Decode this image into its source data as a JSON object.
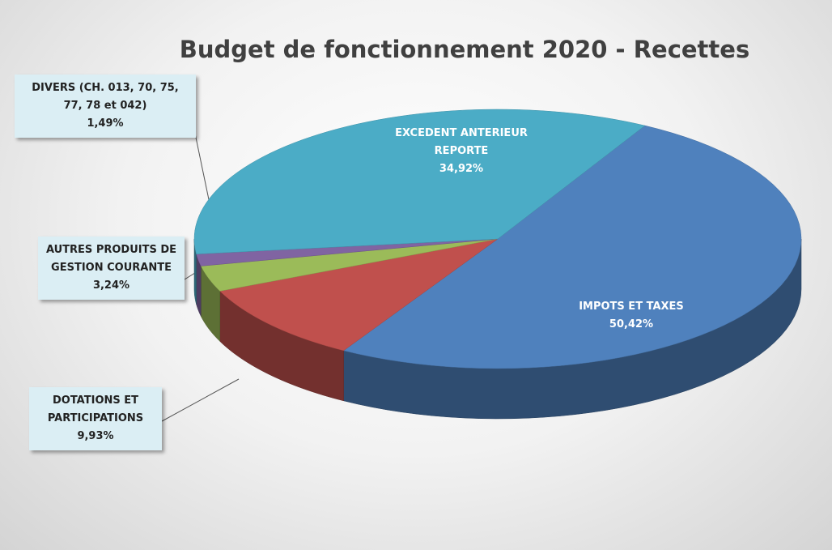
{
  "chart_data": {
    "type": "pie",
    "title": "Budget de fonctionnement 2020 - Recettes",
    "categories": [
      "IMPOTS ET TAXES",
      "DOTATIONS ET PARTICIPATIONS",
      "AUTRES PRODUITS DE GESTION COURANTE",
      "DIVERS (CH. 013, 70, 75, 77, 78 et 042)",
      "EXCEDENT ANTERIEUR REPORTE"
    ],
    "values": [
      50.42,
      9.93,
      3.24,
      1.49,
      34.92
    ],
    "value_labels": [
      "50,42%",
      "9,93%",
      "3,24%",
      "1,49%",
      "34,92%"
    ],
    "colors": [
      "#4f81bd",
      "#c0504d",
      "#9bbb59",
      "#8064a2",
      "#4bacc6"
    ]
  }
}
